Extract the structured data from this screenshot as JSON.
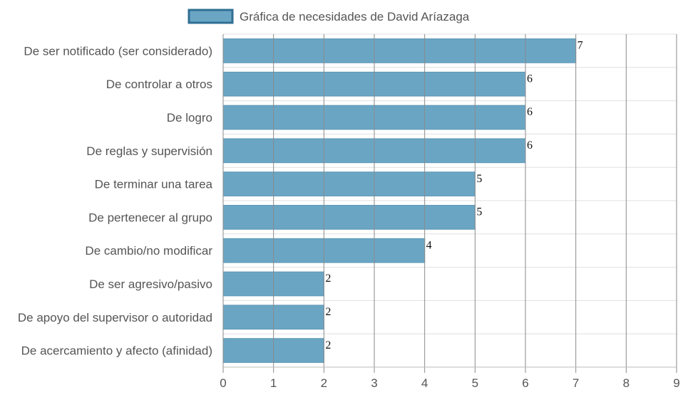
{
  "chart_data": {
    "type": "bar",
    "orientation": "horizontal",
    "legend": {
      "label": "Gráfica de necesidades de David Aríazaga",
      "position": "top-center"
    },
    "categories": [
      "De ser notificado (ser considerado)",
      "De controlar a otros",
      "De logro",
      "De reglas y supervisión",
      "De terminar una tarea",
      "De pertenecer al grupo",
      "De cambio/no modificar",
      "De ser agresivo/pasivo",
      "De apoyo del supervisor o autoridad",
      "De acercamiento y afecto (afinidad)"
    ],
    "series": [
      {
        "name": "Gráfica de necesidades de David Aríazaga",
        "values": [
          7,
          6,
          6,
          6,
          5,
          5,
          4,
          2,
          2,
          2
        ]
      }
    ],
    "value_labels": [
      "7",
      "6",
      "6",
      "6",
      "5",
      "5",
      "4",
      "2",
      "2",
      "2"
    ],
    "x_ticks": [
      "0",
      "1",
      "2",
      "3",
      "4",
      "5",
      "6",
      "7",
      "8",
      "9"
    ],
    "xlim": [
      0,
      9
    ],
    "grid": true,
    "colors": {
      "bar_fill": "#6aa6c4",
      "bar_stroke": "#5b96b5",
      "legend_stroke": "#2f6f93",
      "grid": "#e0e0e0",
      "vertical_grid": "#8a8a8a"
    }
  }
}
